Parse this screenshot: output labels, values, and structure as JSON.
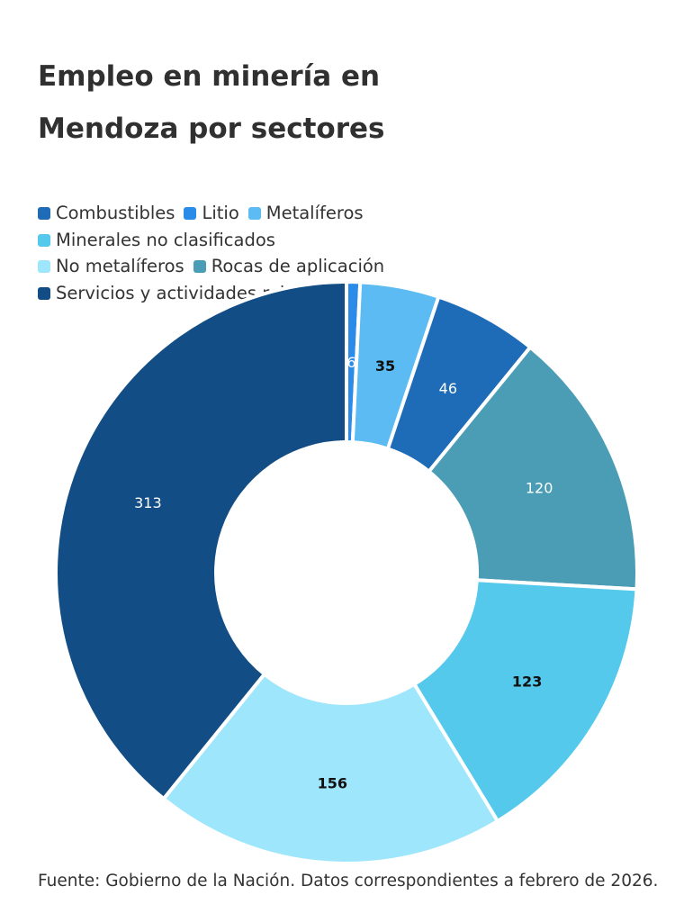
{
  "chart_data": {
    "type": "pie",
    "title": "Empleo en minería en Mendoza por sectores",
    "legend_position": "top-left",
    "categories": [
      "Combustibles",
      "Litio",
      "Metalíferos",
      "Minerales no clasificados",
      "No metalíferos",
      "Rocas de aplicación",
      "Servicios y actividades relacionadas"
    ],
    "series": [
      {
        "values": [
          46,
          6,
          35,
          123,
          156,
          120,
          313
        ],
        "colors": [
          "#1e6bb8",
          "#2b8be8",
          "#5bbbf2",
          "#55c9ec",
          "#9ee6fb",
          "#4a9db4",
          "#124d85"
        ]
      }
    ],
    "slice_order": [
      "Litio",
      "Metalíferos",
      "Combustibles",
      "Rocas de aplicación",
      "Minerales no clasificados",
      "No metalíferos",
      "Servicios y actividades relacionadas"
    ],
    "data_labels": true,
    "donut": true
  },
  "source_note": "Fuente: Gobierno de la Nación. Datos correspondientes a febrero de 2026."
}
